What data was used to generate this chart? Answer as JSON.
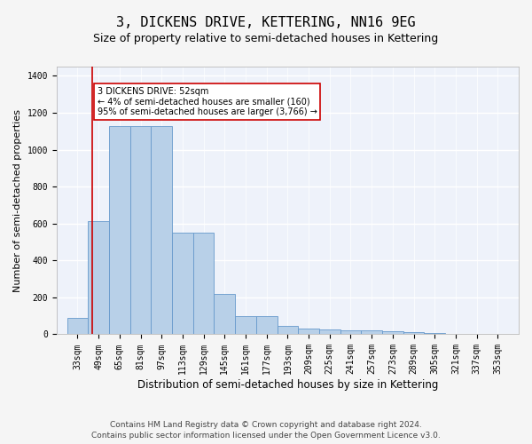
{
  "title": "3, DICKENS DRIVE, KETTERING, NN16 9EG",
  "subtitle": "Size of property relative to semi-detached houses in Kettering",
  "xlabel": "Distribution of semi-detached houses by size in Kettering",
  "ylabel": "Number of semi-detached properties",
  "footer_line1": "Contains HM Land Registry data © Crown copyright and database right 2024.",
  "footer_line2": "Contains public sector information licensed under the Open Government Licence v3.0.",
  "bar_color": "#b8d0e8",
  "bar_edge_color": "#6699cc",
  "background_color": "#eef2fa",
  "grid_color": "#ffffff",
  "red_line_color": "#cc0000",
  "annotation_text": "3 DICKENS DRIVE: 52sqm\n← 4% of semi-detached houses are smaller (160)\n95% of semi-detached houses are larger (3,766) →",
  "annotation_box_color": "#ffffff",
  "annotation_border_color": "#cc0000",
  "property_size": 52,
  "categories": [
    33,
    49,
    65,
    81,
    97,
    113,
    129,
    145,
    161,
    177,
    193,
    209,
    225,
    241,
    257,
    273,
    289,
    305,
    321,
    337,
    353
  ],
  "values": [
    90,
    615,
    1130,
    1130,
    1130,
    550,
    550,
    220,
    100,
    100,
    45,
    30,
    25,
    20,
    20,
    15,
    10,
    5,
    0,
    0,
    0
  ],
  "ylim": [
    0,
    1450
  ],
  "yticks": [
    0,
    200,
    400,
    600,
    800,
    1000,
    1200,
    1400
  ],
  "bin_width": 16,
  "title_fontsize": 11,
  "subtitle_fontsize": 9,
  "axis_label_fontsize": 8,
  "tick_fontsize": 7,
  "annotation_fontsize": 7,
  "footer_fontsize": 6.5
}
